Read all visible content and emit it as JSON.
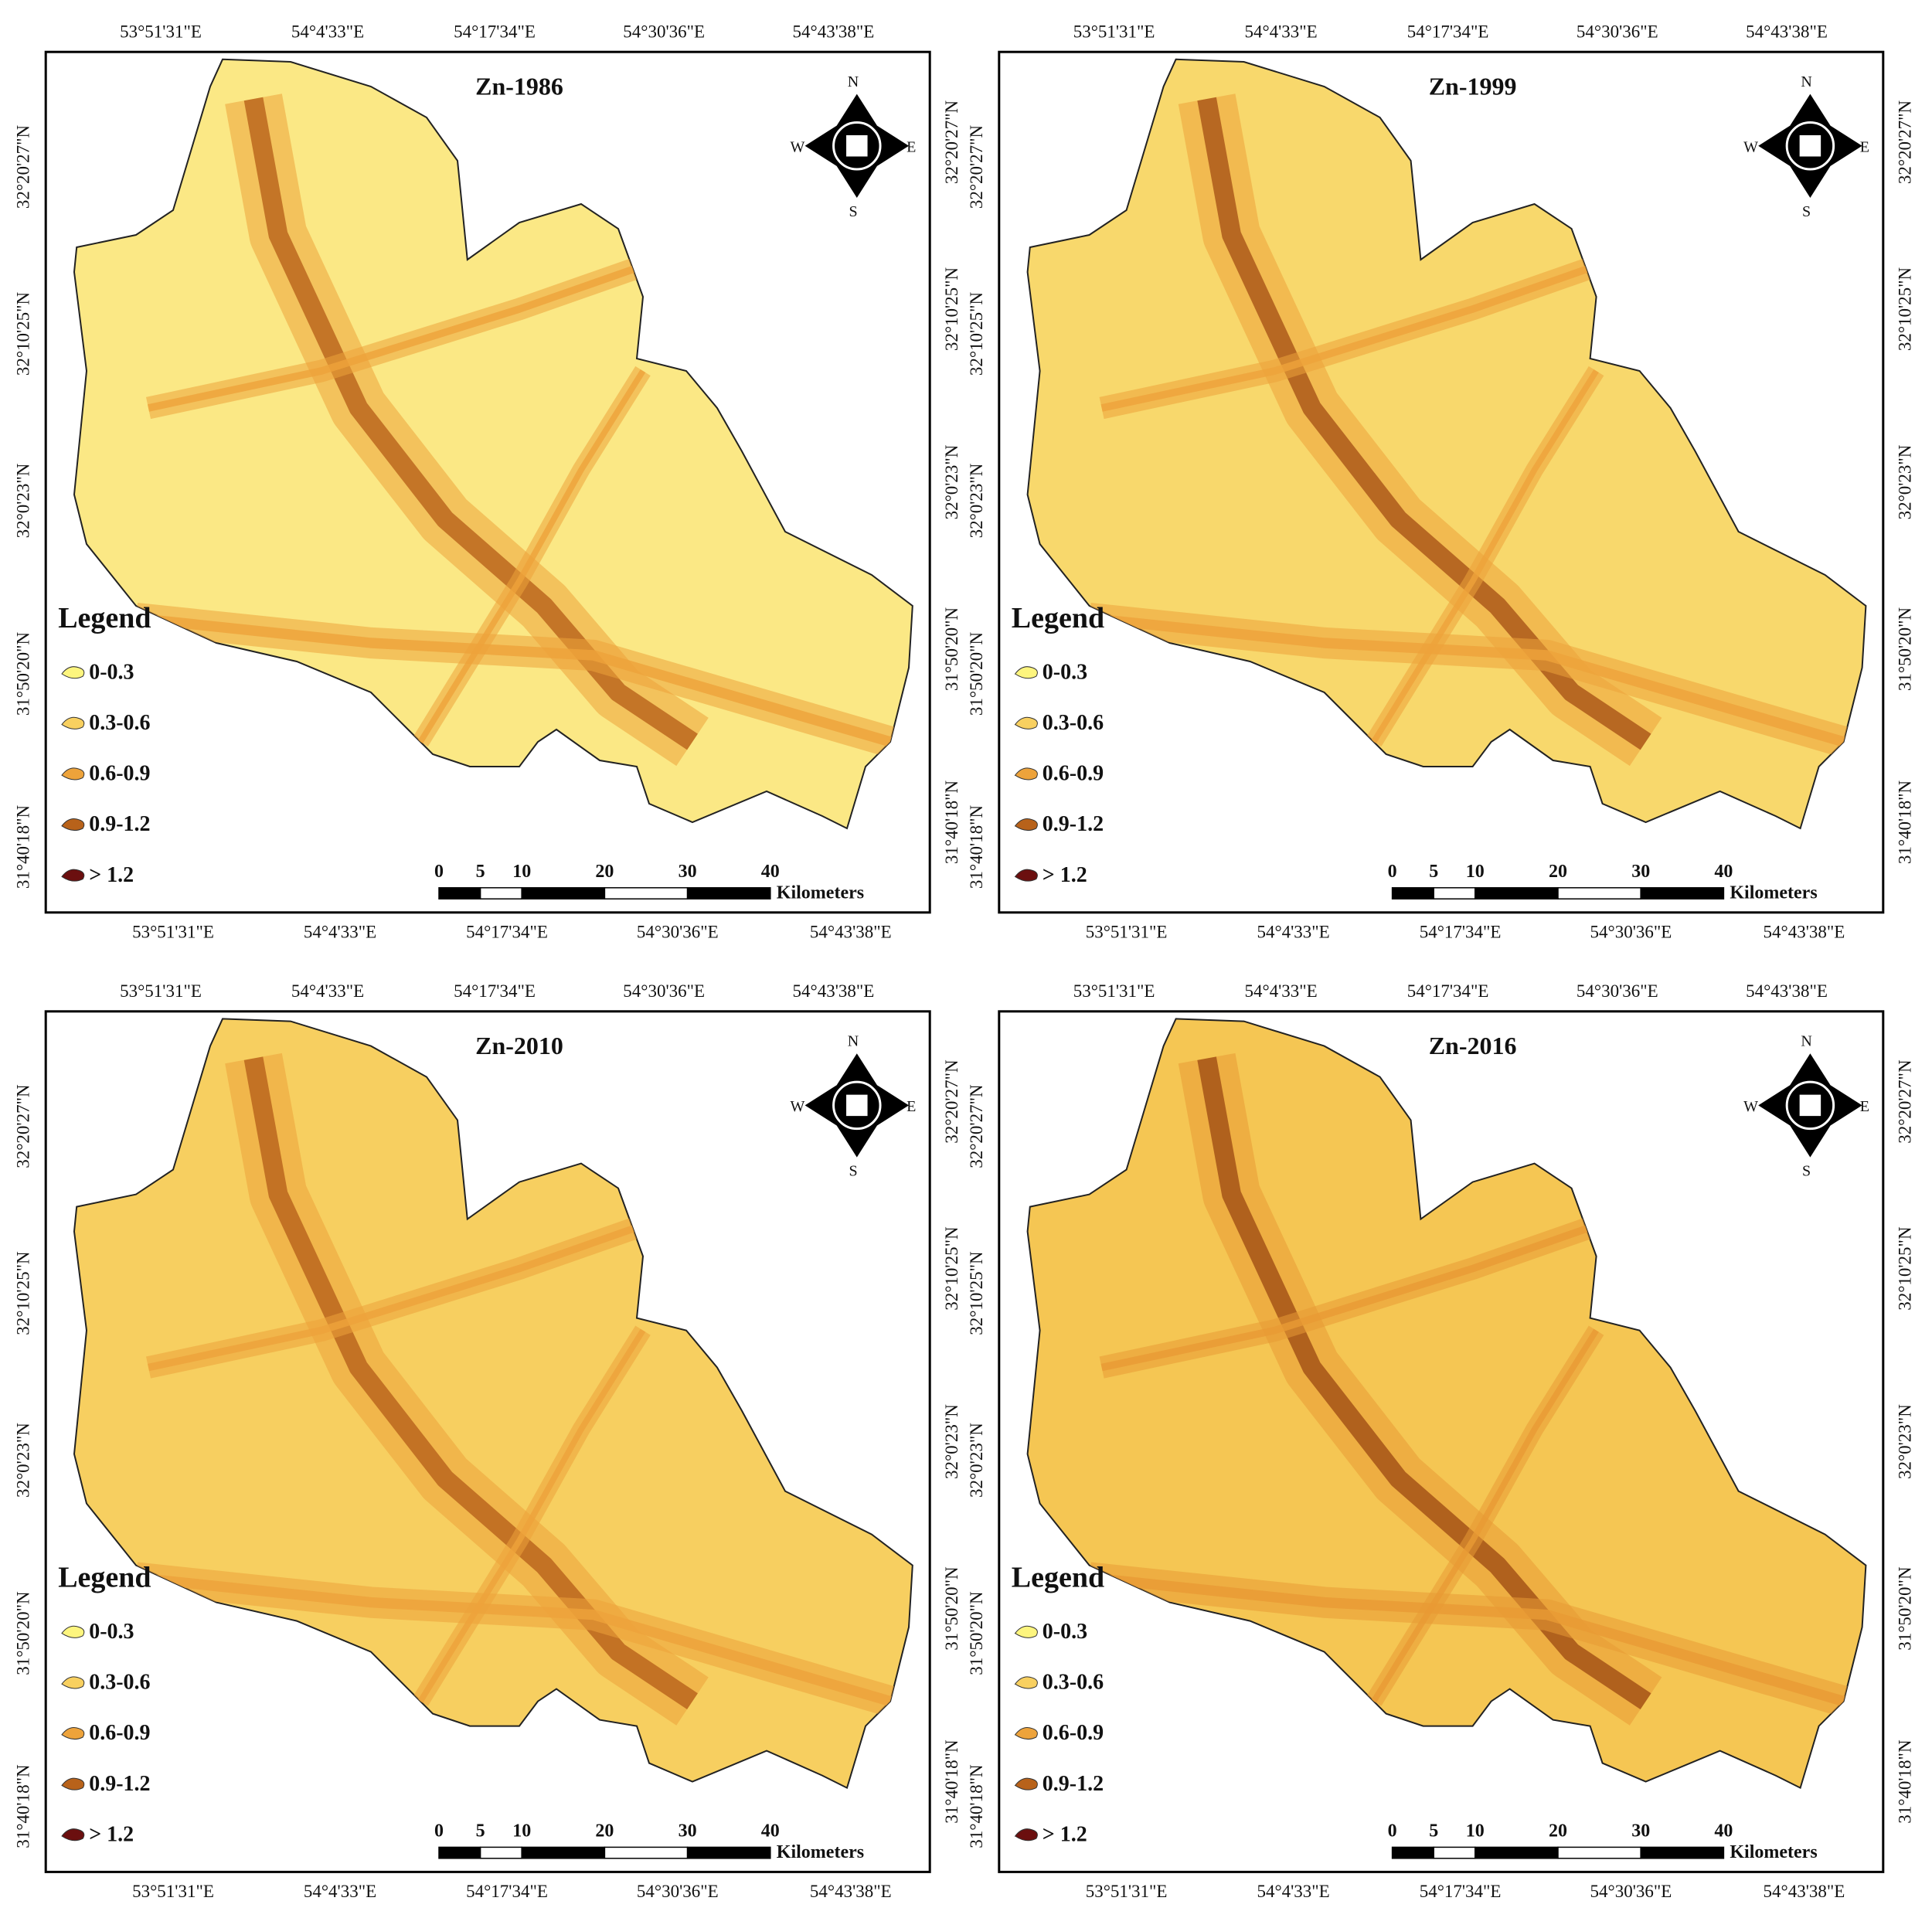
{
  "panels": [
    {
      "title": "Zn-1986",
      "top_labels": [
        "53°51'31\"E",
        "54°4'33\"E",
        "54°17'34\"E",
        "54°30'36\"E",
        "54°43'38\"E"
      ],
      "bottom_labels": [
        "53°51'31\"E",
        "54°4'33\"E",
        "54°17'34\"E",
        "54°30'36\"E",
        "54°43'38\"E"
      ],
      "left_labels": [
        "32°20'27\"N",
        "32°10'25\"N",
        "32°0'23\"N",
        "31°50'20\"N",
        "31°40'18\"N"
      ],
      "right_labels": [
        "32°20'27\"N",
        "32°10'25\"N",
        "32°0'23\"N",
        "31°50'20\"N",
        "31°40'18\"N"
      ],
      "legend": {
        "title": "Legend",
        "items": [
          {
            "label": "0-0.3",
            "color": "#fdf57e"
          },
          {
            "label": "0.3-0.6",
            "color": "#f8d060"
          },
          {
            "label": "0.6-0.9",
            "color": "#eda33b"
          },
          {
            "label": "0.9-1.2",
            "color": "#b8621a"
          },
          {
            "label": "> 1.2",
            "color": "#6b0f0f"
          }
        ]
      },
      "scale": {
        "ticks": [
          0,
          5,
          10,
          20,
          30,
          40
        ],
        "unit": "Kilometers"
      },
      "compass": {
        "n": "N",
        "s": "S",
        "e": "E",
        "w": "W"
      }
    },
    {
      "title": "Zn-1999",
      "top_labels": [
        "53°51'31\"E",
        "54°4'33\"E",
        "54°17'34\"E",
        "54°30'36\"E",
        "54°43'38\"E"
      ],
      "bottom_labels": [
        "53°51'31\"E",
        "54°4'33\"E",
        "54°17'34\"E",
        "54°30'36\"E",
        "54°43'38\"E"
      ],
      "left_labels": [
        "32°20'27\"N",
        "32°10'25\"N",
        "32°0'23\"N",
        "31°50'20\"N",
        "31°40'18\"N"
      ],
      "right_labels": [
        "32°20'27\"N",
        "32°10'25\"N",
        "32°0'23\"N",
        "31°50'20\"N",
        "31°40'18\"N"
      ],
      "legend": {
        "title": "Legend",
        "items": [
          {
            "label": "0-0.3",
            "color": "#fdf57e"
          },
          {
            "label": "0.3-0.6",
            "color": "#f8d060"
          },
          {
            "label": "0.6-0.9",
            "color": "#eda33b"
          },
          {
            "label": "0.9-1.2",
            "color": "#b8621a"
          },
          {
            "label": "> 1.2",
            "color": "#6b0f0f"
          }
        ]
      },
      "scale": {
        "ticks": [
          0,
          5,
          10,
          20,
          30,
          40
        ],
        "unit": "Kilometers"
      },
      "compass": {
        "n": "N",
        "s": "S",
        "e": "E",
        "w": "W"
      }
    },
    {
      "title": "Zn-2010",
      "top_labels": [
        "53°51'31\"E",
        "54°4'33\"E",
        "54°17'34\"E",
        "54°30'36\"E",
        "54°43'38\"E"
      ],
      "bottom_labels": [
        "53°51'31\"E",
        "54°4'33\"E",
        "54°17'34\"E",
        "54°30'36\"E",
        "54°43'38\"E"
      ],
      "left_labels": [
        "32°20'27\"N",
        "32°10'25\"N",
        "32°0'23\"N",
        "31°50'20\"N",
        "31°40'18\"N"
      ],
      "right_labels": [
        "32°20'27\"N",
        "32°10'25\"N",
        "32°0'23\"N",
        "31°50'20\"N",
        "31°40'18\"N"
      ],
      "legend": {
        "title": "Legend",
        "items": [
          {
            "label": "0-0.3",
            "color": "#fdf57e"
          },
          {
            "label": "0.3-0.6",
            "color": "#f8d060"
          },
          {
            "label": "0.6-0.9",
            "color": "#eda33b"
          },
          {
            "label": "0.9-1.2",
            "color": "#b8621a"
          },
          {
            "label": "> 1.2",
            "color": "#6b0f0f"
          }
        ]
      },
      "scale": {
        "ticks": [
          0,
          5,
          10,
          20,
          30,
          40
        ],
        "unit": "Kilometers"
      },
      "compass": {
        "n": "N",
        "s": "S",
        "e": "E",
        "w": "W"
      }
    },
    {
      "title": "Zn-2016",
      "top_labels": [
        "53°51'31\"E",
        "54°4'33\"E",
        "54°17'34\"E",
        "54°30'36\"E",
        "54°43'38\"E"
      ],
      "bottom_labels": [
        "53°51'31\"E",
        "54°4'33\"E",
        "54°17'34\"E",
        "54°30'36\"E",
        "54°43'38\"E"
      ],
      "left_labels": [
        "32°20'27\"N",
        "32°10'25\"N",
        "32°0'23\"N",
        "31°50'20\"N",
        "31°40'18\"N"
      ],
      "right_labels": [
        "32°20'27\"N",
        "32°10'25\"N",
        "32°0'23\"N",
        "31°50'20\"N",
        "31°40'18\"N"
      ],
      "legend": {
        "title": "Legend",
        "items": [
          {
            "label": "0-0.3",
            "color": "#fdf57e"
          },
          {
            "label": "0.3-0.6",
            "color": "#f8d060"
          },
          {
            "label": "0.6-0.9",
            "color": "#eda33b"
          },
          {
            "label": "0.9-1.2",
            "color": "#b8621a"
          },
          {
            "label": "> 1.2",
            "color": "#6b0f0f"
          }
        ]
      },
      "scale": {
        "ticks": [
          0,
          5,
          10,
          20,
          30,
          40
        ],
        "unit": "Kilometers"
      },
      "compass": {
        "n": "N",
        "s": "S",
        "e": "E",
        "w": "W"
      }
    }
  ]
}
